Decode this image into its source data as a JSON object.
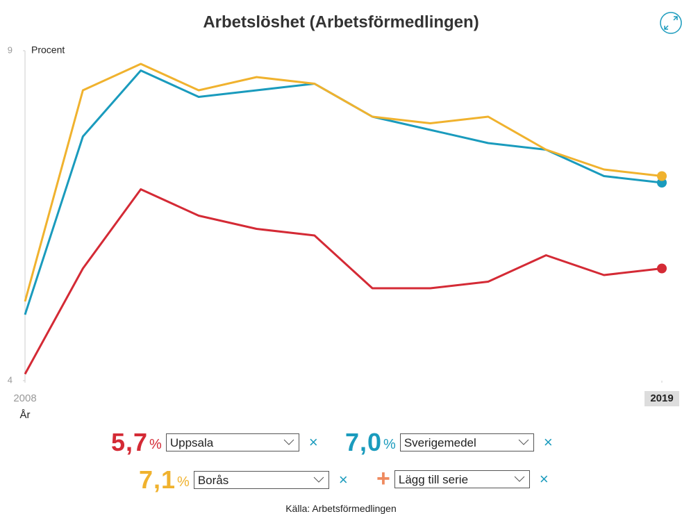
{
  "chart_data": {
    "type": "line",
    "title": "Arbetslöshet (Arbetsförmedlingen)",
    "y_label": "Procent",
    "x_label": "År",
    "x": [
      2008,
      2009,
      2010,
      2011,
      2012,
      2013,
      2014,
      2015,
      2016,
      2017,
      2018,
      2019
    ],
    "xlim": [
      2008,
      2019
    ],
    "xticks": [
      2008,
      2019
    ],
    "ylim": [
      4,
      9
    ],
    "yticks": [
      4,
      9
    ],
    "grid": false,
    "series": [
      {
        "name": "Uppsala",
        "color": "#d42a35",
        "values": [
          4.1,
          5.7,
          6.9,
          6.5,
          6.3,
          6.2,
          5.4,
          5.4,
          5.5,
          5.9,
          5.6,
          5.7
        ]
      },
      {
        "name": "Sverigemedel",
        "color": "#1a9bbd",
        "values": [
          5.0,
          7.7,
          8.7,
          8.3,
          8.4,
          8.5,
          8.0,
          7.8,
          7.6,
          7.5,
          7.1,
          7.0
        ]
      },
      {
        "name": "Borås",
        "color": "#f0b22e",
        "values": [
          5.2,
          8.4,
          8.8,
          8.4,
          8.6,
          8.5,
          8.0,
          7.9,
          8.0,
          7.5,
          7.2,
          7.1
        ]
      }
    ],
    "controls": [
      {
        "value": "5,7",
        "unit": "%",
        "select": "Uppsala",
        "remove": "×"
      },
      {
        "value": "7,0",
        "unit": "%",
        "select": "Sverigemedel",
        "remove": "×"
      },
      {
        "value": "7,1",
        "unit": "%",
        "select": "Borås",
        "remove": "×"
      }
    ],
    "add_series": {
      "icon": "+",
      "select": "Lägg till serie",
      "remove": "×"
    },
    "source": "Källa: Arbetsförmedlingen"
  }
}
